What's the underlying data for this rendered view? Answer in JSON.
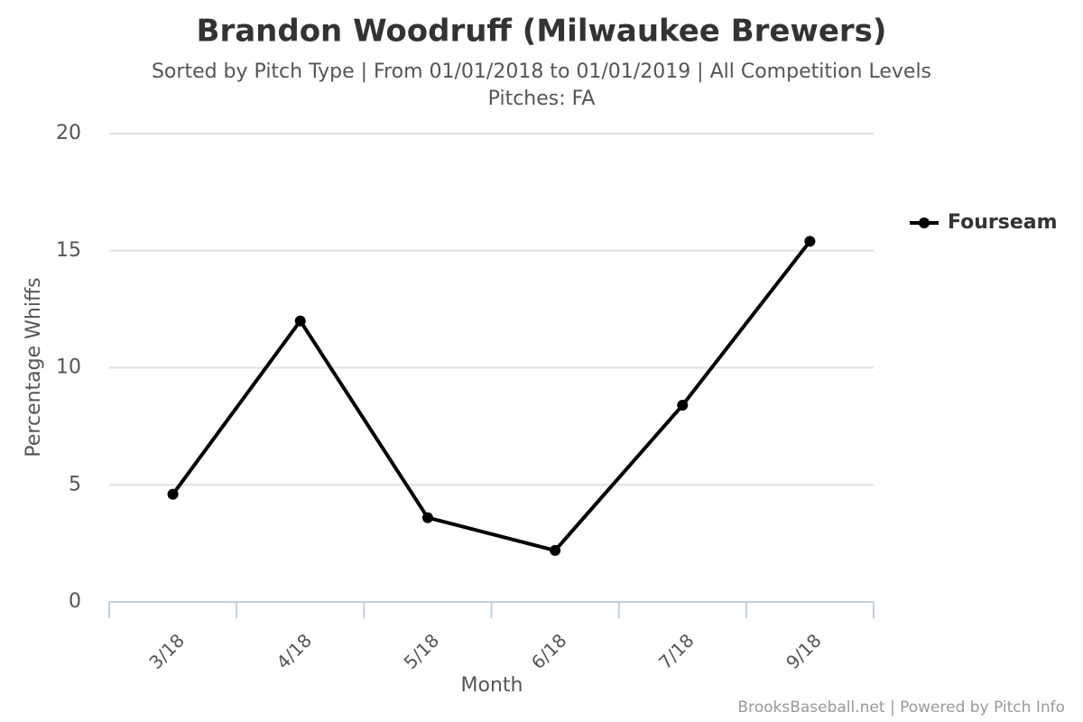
{
  "chart_data": {
    "type": "line",
    "title": "Brandon Woodruff (Milwaukee Brewers)",
    "subtitle": [
      "Sorted by Pitch Type | From 01/01/2018 to 01/01/2019 | All Competition Levels",
      "Pitches: FA"
    ],
    "x_label": "Month",
    "y_label": "Percentage Whiffs",
    "categories": [
      "3/18",
      "4/18",
      "5/18",
      "6/18",
      "7/18",
      "9/18"
    ],
    "series": [
      {
        "name": "Fourseam",
        "color": "#000000",
        "values": [
          4.6,
          12.0,
          3.6,
          2.2,
          8.4,
          15.4
        ]
      }
    ],
    "ylim": [
      0,
      20
    ],
    "yticks": [
      0,
      5,
      10,
      15,
      20
    ],
    "grid": true,
    "legend": "right",
    "credit": "BrooksBaseball.net | Powered by Pitch Info"
  }
}
